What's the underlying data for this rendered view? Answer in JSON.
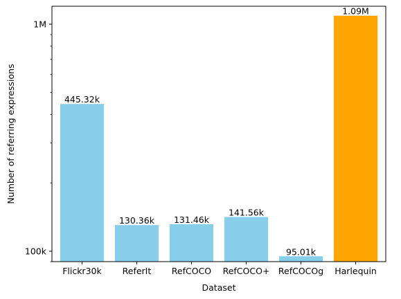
{
  "chart_data": {
    "type": "bar",
    "title": "",
    "xlabel": "Dataset",
    "ylabel": "Number of referring expressions",
    "yscale": "log",
    "ylim": [
      90000,
      1200000
    ],
    "yticks": [
      {
        "value": 100000,
        "label": "100k"
      },
      {
        "value": 1000000,
        "label": "1M"
      }
    ],
    "categories": [
      "Flickr30k",
      "ReferIt",
      "RefCOCO",
      "RefCOCO+",
      "RefCOCOg",
      "Harlequin"
    ],
    "values": [
      445320,
      130360,
      131460,
      141560,
      95010,
      1090000
    ],
    "data_labels": [
      "445.32k",
      "130.36k",
      "131.46k",
      "141.56k",
      "95.01k",
      "1.09M"
    ],
    "colors": [
      "#87ceeb",
      "#87ceeb",
      "#87ceeb",
      "#87ceeb",
      "#87ceeb",
      "#ffa500"
    ],
    "grid": false,
    "legend": "none"
  }
}
